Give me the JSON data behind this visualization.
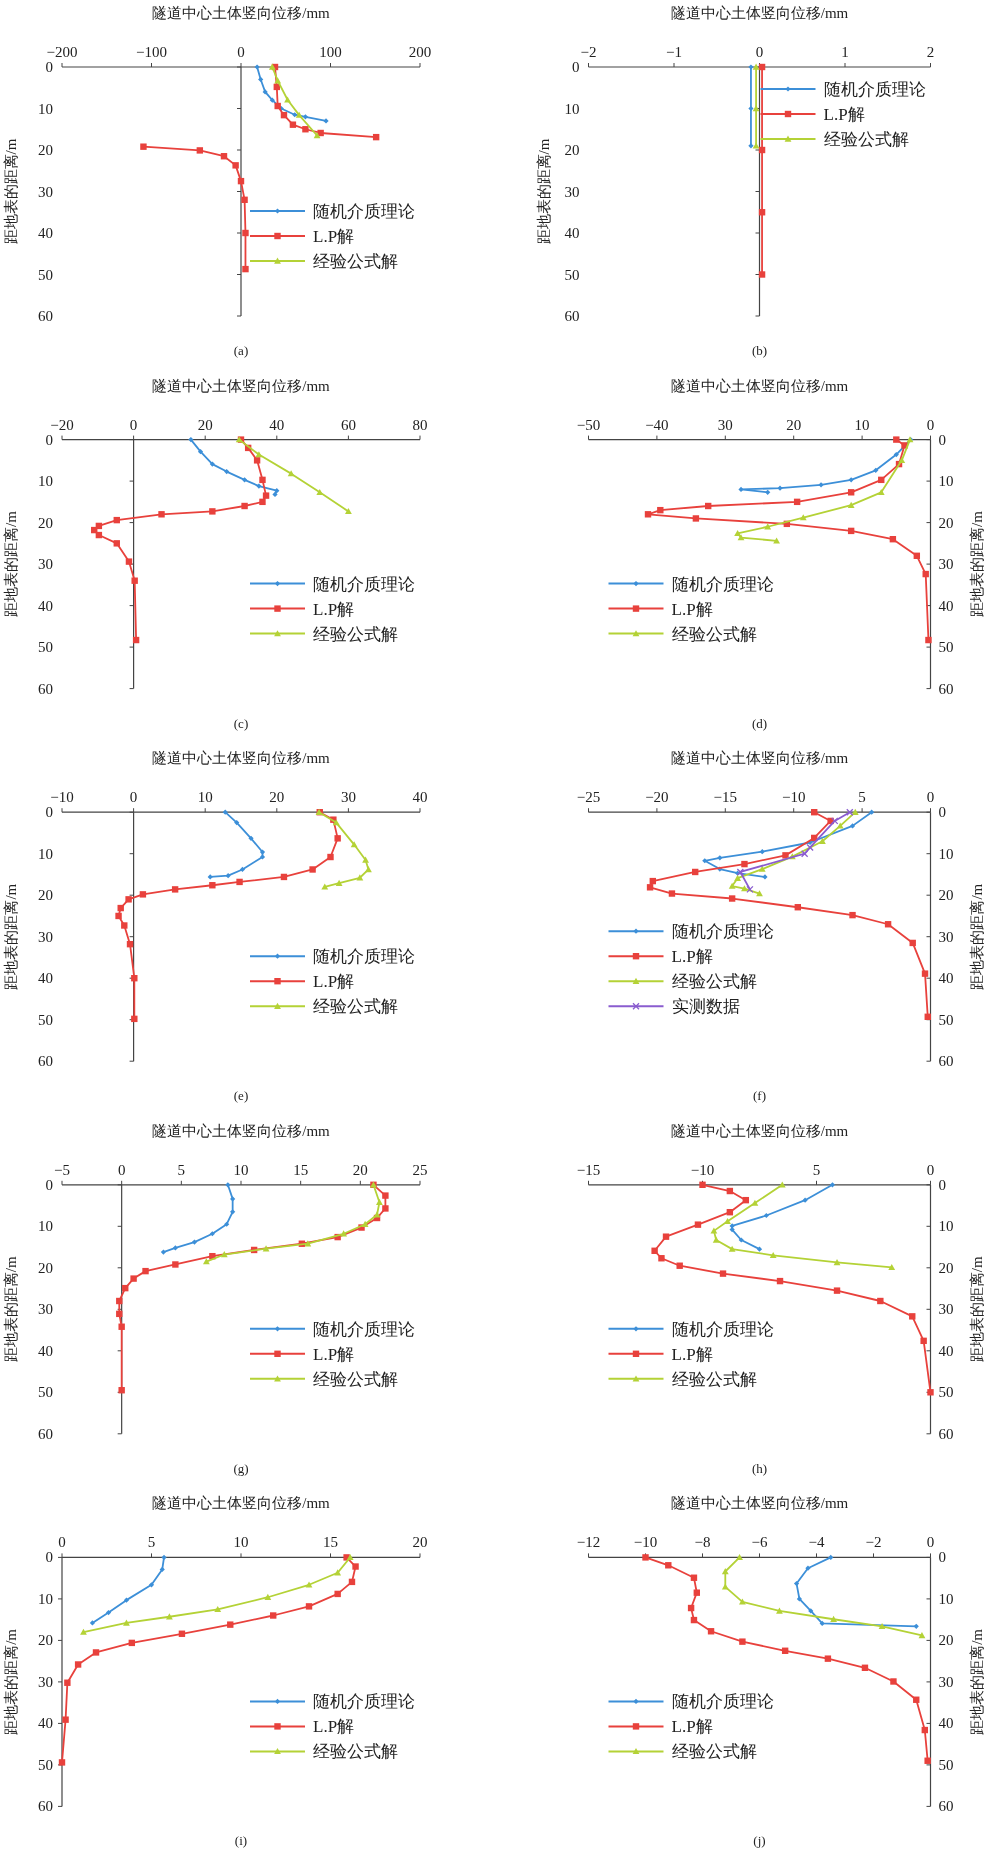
{
  "chart_data": [
    {
      "type": "line",
      "xlabel": "隧道中心土体竖向位移/mm",
      "ylabel": "距地表的距离/m",
      "annotations": [
        "(a)"
      ],
      "legend": "bottom right",
      "xlim": [
        -200,
        200
      ],
      "xticks": [
        -200,
        -100,
        0,
        100,
        200
      ],
      "ylim": [
        60,
        0
      ],
      "yticks": [
        0,
        10,
        20,
        30,
        40,
        50,
        60
      ],
      "series": [
        {
          "name": "随机介质理论",
          "color": "#3c8fd8",
          "marker": "diamond",
          "x": [
            18,
            22,
            27,
            35,
            45,
            60,
            72,
            95
          ],
          "values": [
            0,
            3,
            6,
            8,
            10,
            11.5,
            12,
            13
          ]
        },
        {
          "name": "L.P解",
          "color": "#e8413c",
          "marker": "square",
          "x": [
            38,
            40,
            41,
            48,
            58,
            72,
            89,
            151,
            null,
            -109,
            -46,
            -19,
            -6,
            0,
            4,
            5,
            5
          ],
          "values": [
            0,
            4.8,
            9.4,
            11.6,
            13.9,
            15,
            15.9,
            16.9,
            null,
            19.2,
            20.1,
            21.5,
            23.7,
            27.5,
            32,
            40,
            48.7
          ]
        },
        {
          "name": "经验公式解",
          "color": "#b4d236",
          "marker": "triangle",
          "x": [
            35,
            41,
            52,
            65,
            85
          ],
          "values": [
            0,
            3.3,
            7.9,
            11.6,
            16.5
          ]
        }
      ]
    },
    {
      "type": "line",
      "xlabel": "隧道中心土体竖向位移/mm",
      "ylabel": "距地表的距离/m",
      "annotations": [
        "(b)"
      ],
      "legend": "top right",
      "xlim": [
        -2,
        2
      ],
      "xticks": [
        -2,
        -1,
        0,
        1,
        2
      ],
      "ylim": [
        60,
        0
      ],
      "yticks": [
        0,
        10,
        20,
        30,
        40,
        50,
        60
      ],
      "series": [
        {
          "name": "随机介质理论",
          "color": "#3c8fd8",
          "marker": "diamond",
          "x": [
            -0.1,
            -0.1,
            -0.1
          ],
          "values": [
            0,
            10,
            19
          ]
        },
        {
          "name": "L.P解",
          "color": "#e8413c",
          "marker": "square",
          "x": [
            0.03,
            0.03,
            0.03,
            0.03
          ],
          "values": [
            0,
            20,
            35,
            50
          ]
        },
        {
          "name": "经验公式解",
          "color": "#b4d236",
          "marker": "triangle",
          "x": [
            -0.04,
            -0.04,
            -0.04
          ],
          "values": [
            0,
            10,
            19
          ]
        }
      ]
    },
    {
      "type": "line",
      "xlabel": "隧道中心土体竖向位移/mm",
      "ylabel": "距地表的距离/m",
      "annotations": [
        "(c)"
      ],
      "legend": "bottom right",
      "xlim": [
        -20,
        80
      ],
      "xticks": [
        -20,
        0,
        20,
        40,
        60,
        80
      ],
      "ylim": [
        60,
        0
      ],
      "yticks": [
        0,
        10,
        20,
        30,
        40,
        50,
        60
      ],
      "series": [
        {
          "name": "随机介质理论",
          "color": "#3c8fd8",
          "marker": "diamond",
          "x": [
            16,
            18.7,
            22,
            26,
            31,
            35,
            40,
            39.5
          ],
          "values": [
            0,
            2.9,
            5.9,
            7.7,
            9.7,
            11.2,
            12.3,
            13.2
          ]
        },
        {
          "name": "L.P解",
          "color": "#e8413c",
          "marker": "square",
          "x": [
            30,
            32,
            34.5,
            36,
            37,
            36,
            31,
            22,
            7.8,
            -4.7,
            -9.7,
            -11,
            -9.7,
            -4.7,
            -1.3,
            0.3,
            0.7
          ],
          "values": [
            0,
            2,
            5,
            9.7,
            13.5,
            15,
            16,
            17.3,
            18,
            19.4,
            20.8,
            21.8,
            23,
            25,
            29.4,
            34,
            48.3
          ]
        },
        {
          "name": "经验公式解",
          "color": "#b4d236",
          "marker": "triangle",
          "x": [
            29.5,
            35,
            44,
            52,
            60
          ],
          "values": [
            0,
            3.6,
            8.2,
            12.7,
            17.3
          ]
        }
      ]
    },
    {
      "type": "line",
      "xlabel": "隧道中心土体竖向位移/mm",
      "ylabel": "距地表的距离/m",
      "annotations": [
        "(d)"
      ],
      "legend": "bottom left",
      "xlim": [
        -50,
        0
      ],
      "xticks": [
        -50,
        -40,
        {
          "value": -30,
          "label": "30"
        },
        {
          "value": -20,
          "label": "20"
        },
        {
          "value": -10,
          "label": "10"
        },
        0
      ],
      "ylim": [
        60,
        0
      ],
      "yticks": [
        0,
        10,
        20,
        30,
        40,
        50,
        60
      ],
      "series": [
        {
          "name": "随机介质理论",
          "color": "#3c8fd8",
          "marker": "diamond",
          "x": [
            -2.9,
            -5,
            -8,
            -11.6,
            -16,
            -22,
            -27.7,
            -23.8
          ],
          "values": [
            0,
            3.6,
            7.4,
            9.7,
            10.9,
            11.7,
            12,
            12.7
          ]
        },
        {
          "name": "L.P解",
          "color": "#e8413c",
          "marker": "square",
          "x": [
            -5,
            -3.8,
            -4.6,
            -7.2,
            -11.6,
            -19.5,
            -32.5,
            -39.5,
            -41.3,
            -34.3,
            -21,
            -11.6,
            -5.5,
            -2,
            -0.7,
            -0.3
          ],
          "values": [
            0,
            1.4,
            5.9,
            9.7,
            12.7,
            15,
            16,
            17,
            18,
            19,
            20.3,
            22,
            24,
            28,
            32.4,
            48.3
          ]
        },
        {
          "name": "经验公式解",
          "color": "#b4d236",
          "marker": "triangle",
          "x": [
            -3,
            -4.2,
            -7.2,
            -11.6,
            -18.6,
            -23.8,
            -28.2,
            -27.7,
            -22.5
          ],
          "values": [
            0,
            5,
            12.7,
            15.8,
            18.8,
            21,
            22.6,
            23.6,
            24.4
          ]
        }
      ]
    },
    {
      "type": "line",
      "xlabel": "隧道中心土体竖向位移/mm",
      "ylabel": "距地表的距离/m",
      "annotations": [
        "(e)"
      ],
      "legend": "bottom right",
      "xlim": [
        -10,
        40
      ],
      "xticks": [
        -10,
        0,
        10,
        20,
        30,
        40
      ],
      "ylim": [
        60,
        0
      ],
      "yticks": [
        0,
        10,
        20,
        30,
        40,
        50,
        60
      ],
      "series": [
        {
          "name": "随机介质理论",
          "color": "#3c8fd8",
          "marker": "diamond",
          "x": [
            12.8,
            14.4,
            16.4,
            18,
            18,
            15.2,
            13.2,
            10.7
          ],
          "values": [
            0,
            2.5,
            6.3,
            9.6,
            10.8,
            13.8,
            15.3,
            15.6
          ]
        },
        {
          "name": "L.P解",
          "color": "#e8413c",
          "marker": "square",
          "x": [
            26,
            27.9,
            28.5,
            27.5,
            25,
            21,
            14.8,
            11,
            5.8,
            1.3,
            -0.7,
            -1.8,
            -2.1,
            -1.3,
            -0.5,
            0.1,
            0.1
          ],
          "values": [
            0,
            1.8,
            6.3,
            10.8,
            13.8,
            15.6,
            16.8,
            17.6,
            18.6,
            19.8,
            21,
            23.1,
            25,
            27.3,
            31.8,
            40,
            49.8
          ]
        },
        {
          "name": "经验公式解",
          "color": "#b4d236",
          "marker": "triangle",
          "x": [
            25.9,
            28.3,
            30.8,
            32.4,
            32.8,
            31.6,
            28.7,
            26.7
          ],
          "values": [
            0,
            2.5,
            7.8,
            11.5,
            13.8,
            15.8,
            17.1,
            18
          ]
        }
      ]
    },
    {
      "type": "line",
      "xlabel": "隧道中心土体竖向位移/mm",
      "ylabel": "距地表的距离/m",
      "annotations": [
        "(f)"
      ],
      "legend": "bottom left",
      "xlim": [
        -25,
        0
      ],
      "xticks": [
        -25,
        -20,
        -15,
        -10,
        {
          "value": -5,
          "label": "5"
        },
        0
      ],
      "ylim": [
        60,
        0
      ],
      "yticks": [
        0,
        10,
        20,
        30,
        40,
        50,
        60
      ],
      "series": [
        {
          "name": "随机介质理论",
          "color": "#3c8fd8",
          "marker": "diamond",
          "x": [
            -4.3,
            -5.7,
            -8.8,
            -12.3,
            -15.4,
            -16.5,
            -15.4,
            -14.1,
            -12.1
          ],
          "values": [
            0,
            3.3,
            7.3,
            9.5,
            11,
            11.7,
            13.7,
            14.7,
            15.6
          ]
        },
        {
          "name": "L.P解",
          "color": "#e8413c",
          "marker": "square",
          "x": [
            -8.5,
            -7.3,
            -8.5,
            -10.6,
            -13.6,
            -17.2,
            -20.3,
            -20.5,
            -18.9,
            -14.5,
            -9.7,
            -5.7,
            -3.1,
            -1.3,
            -0.4,
            -0.2
          ],
          "values": [
            0,
            2.1,
            6.2,
            10.4,
            12.5,
            14.4,
            16.6,
            18.1,
            19.6,
            20.8,
            22.9,
            24.8,
            27,
            31.5,
            38.9,
            49.3
          ]
        },
        {
          "name": "经验公式解",
          "color": "#b4d236",
          "marker": "triangle",
          "x": [
            -5.5,
            -6.6,
            -7.9,
            -10.1,
            -12.3,
            -14.1,
            -14.5,
            -13.6,
            -12.5
          ],
          "values": [
            0,
            3.3,
            7,
            10.7,
            13.7,
            15.9,
            17.8,
            18.4,
            19.6
          ]
        },
        {
          "name": "实测数据",
          "color": "#8a5ccf",
          "marker": "cross",
          "x": [
            -5.9,
            -7,
            -8.8,
            -9.2,
            -13.9,
            -13.2
          ],
          "values": [
            0,
            2.1,
            8.5,
            10,
            14.4,
            18.6
          ]
        }
      ]
    },
    {
      "type": "line",
      "xlabel": "隧道中心土体竖向位移/mm",
      "ylabel": "距地表的距离/m",
      "annotations": [
        "(g)"
      ],
      "legend": "bottom right",
      "xlim": [
        -5,
        25
      ],
      "xticks": [
        -5,
        0,
        5,
        10,
        15,
        20,
        25
      ],
      "ylim": [
        60,
        0
      ],
      "yticks": [
        0,
        10,
        20,
        30,
        40,
        50,
        60
      ],
      "series": [
        {
          "name": "随机介质理论",
          "color": "#3c8fd8",
          "marker": "diamond",
          "x": [
            8.9,
            9.3,
            9.3,
            8.8,
            7.6,
            6.1,
            4.5,
            3.5
          ],
          "values": [
            0,
            3.4,
            6.5,
            9.5,
            11.8,
            13.8,
            15.2,
            16.2
          ]
        },
        {
          "name": "L.P解",
          "color": "#e8413c",
          "marker": "square",
          "x": [
            21.1,
            22.1,
            22.1,
            21.4,
            20.1,
            18.1,
            15.1,
            11.1,
            7.6,
            4.5,
            2,
            1,
            0.3,
            -0.2,
            -0.2,
            0,
            0
          ],
          "values": [
            0,
            2.6,
            5.7,
            8,
            10.3,
            12.6,
            14.2,
            15.7,
            17.2,
            19.2,
            20.8,
            22.6,
            24.9,
            28,
            31.1,
            34.2,
            49.5
          ]
        },
        {
          "name": "经验公式解",
          "color": "#b4d236",
          "marker": "triangle",
          "x": [
            21.1,
            21.6,
            21.4,
            20.4,
            18.6,
            15.6,
            12.1,
            8.6,
            7.1
          ],
          "values": [
            0,
            4.2,
            7.2,
            9.5,
            11.8,
            14.2,
            15.4,
            16.8,
            18.5
          ]
        }
      ]
    },
    {
      "type": "line",
      "xlabel": "隧道中心土体竖向位移/mm",
      "ylabel": "距地表的距离/m",
      "annotations": [
        "(h)"
      ],
      "legend": "bottom left",
      "xlim": [
        -15,
        0
      ],
      "xticks": [
        -15,
        -10,
        {
          "value": -5,
          "label": "5"
        },
        0
      ],
      "ylim": [
        60,
        0
      ],
      "yticks": [
        0,
        10,
        20,
        30,
        40,
        50,
        60
      ],
      "series": [
        {
          "name": "随机介质理论",
          "color": "#3c8fd8",
          "marker": "diamond",
          "x": [
            -4.3,
            -5.5,
            -7.2,
            -8.7,
            -8.7,
            -8.3,
            -7.5
          ],
          "values": [
            0,
            3.7,
            7.4,
            9.9,
            10.8,
            13.3,
            15.5
          ]
        },
        {
          "name": "L.P解",
          "color": "#e8413c",
          "marker": "square",
          "x": [
            -10,
            -8.8,
            -8.1,
            -8.8,
            -10.2,
            -11.6,
            -12.1,
            -11.8,
            -11,
            -9.1,
            -6.6,
            -4.1,
            -2.2,
            -0.8,
            -0.3,
            0
          ],
          "values": [
            0,
            1.5,
            3.7,
            6.6,
            9.6,
            12.5,
            15.9,
            17.7,
            19.5,
            21.4,
            23.2,
            25.5,
            28,
            31.7,
            37.6,
            50
          ]
        },
        {
          "name": "经验公式解",
          "color": "#b4d236",
          "marker": "triangle",
          "x": [
            -6.5,
            -7.7,
            -8.9,
            -9.5,
            -9.4,
            -8.7,
            -6.9,
            -4.1,
            -1.7
          ],
          "values": [
            0,
            4.4,
            8.8,
            11.1,
            13.3,
            15.5,
            17,
            18.7,
            19.9
          ]
        }
      ]
    },
    {
      "type": "line",
      "xlabel": "隧道中心土体竖向位移/mm",
      "ylabel": "距地表的距离/m",
      "annotations": [
        "(i)"
      ],
      "legend": "bottom right",
      "xlim": [
        0,
        20
      ],
      "xticks": [
        0,
        5,
        10,
        15,
        20
      ],
      "ylim": [
        60,
        0
      ],
      "yticks": [
        0,
        10,
        20,
        30,
        40,
        50,
        60
      ],
      "series": [
        {
          "name": "随机介质理论",
          "color": "#3c8fd8",
          "marker": "diamond",
          "x": [
            5.7,
            5.6,
            5,
            3.6,
            2.6,
            1.7
          ],
          "values": [
            0,
            2.9,
            6.6,
            10.3,
            13.3,
            15.8
          ]
        },
        {
          "name": "L.P解",
          "color": "#e8413c",
          "marker": "square",
          "x": [
            15.9,
            16.4,
            16.2,
            15.4,
            13.8,
            11.8,
            9.4,
            6.7,
            3.9,
            1.9,
            0.9,
            0.3,
            0.2,
            0
          ],
          "values": [
            0,
            2.2,
            5.9,
            8.8,
            11.8,
            14,
            16.2,
            18.4,
            20.6,
            22.9,
            25.8,
            30.2,
            39.1,
            49.4
          ]
        },
        {
          "name": "经验公式解",
          "color": "#b4d236",
          "marker": "triangle",
          "x": [
            16.1,
            15.4,
            13.8,
            11.5,
            8.7,
            6,
            3.6,
            1.2
          ],
          "values": [
            0,
            3.7,
            6.6,
            9.6,
            12.5,
            14.3,
            15.8,
            18
          ]
        }
      ]
    },
    {
      "type": "line",
      "xlabel": "隧道中心土体竖向位移/mm",
      "ylabel": "距地表的距离/m",
      "annotations": [
        "(j)"
      ],
      "legend": "bottom left",
      "xlim": [
        -12,
        0
      ],
      "xticks": [
        -12,
        -10,
        -8,
        -6,
        -4,
        -2,
        0
      ],
      "ylim": [
        60,
        0
      ],
      "yticks": [
        0,
        10,
        20,
        30,
        40,
        50,
        60
      ],
      "series": [
        {
          "name": "随机介质理论",
          "color": "#3c8fd8",
          "marker": "diamond",
          "x": [
            -3.5,
            -4.3,
            -4.7,
            -4.6,
            -4.2,
            -3.8,
            -0.5
          ],
          "values": [
            0,
            2.6,
            6.3,
            10,
            12.9,
            15.9,
            16.6
          ]
        },
        {
          "name": "L.P解",
          "color": "#e8413c",
          "marker": "square",
          "x": [
            -10,
            -9.2,
            -8.3,
            -8.2,
            -8.4,
            -8.3,
            -7.7,
            -6.6,
            -5.1,
            -3.6,
            -2.3,
            -1.3,
            -0.5,
            -0.2,
            -0.1
          ],
          "values": [
            0,
            1.9,
            4.9,
            8.5,
            12.2,
            15.1,
            17.8,
            20.3,
            22.5,
            24.4,
            26.6,
            29.9,
            34.3,
            41.6,
            49
          ]
        },
        {
          "name": "经验公式解",
          "color": "#b4d236",
          "marker": "triangle",
          "x": [
            -6.7,
            -7.2,
            -7.2,
            -6.6,
            -5.3,
            -3.4,
            -1.7,
            -0.3
          ],
          "values": [
            0,
            3.4,
            7.1,
            10.7,
            12.9,
            14.9,
            16.6,
            18.8
          ]
        }
      ]
    }
  ]
}
